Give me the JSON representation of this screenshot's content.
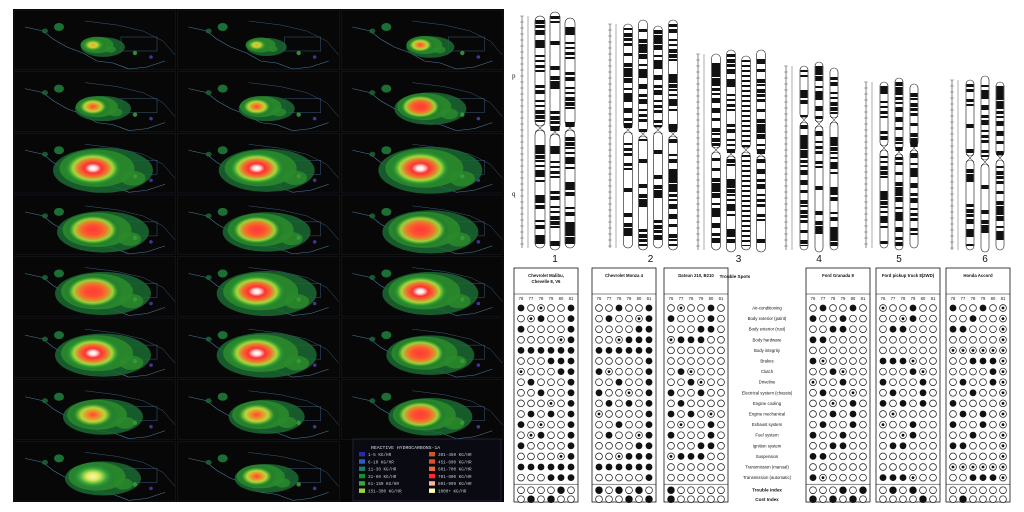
{
  "smallMultiples": {
    "legend": {
      "title": "REACTIVE HYDROCARBONS-1A",
      "items": [
        {
          "label": "1-5 KG/HR",
          "color": "#2a2aa8"
        },
        {
          "label": "6-10 KG/HR",
          "color": "#2e5fc0"
        },
        {
          "label": "11-30 KG/HR",
          "color": "#1f7a6a"
        },
        {
          "label": "31-60 KG/HR",
          "color": "#1f8a2a"
        },
        {
          "label": "61-150 KG/HR",
          "color": "#3aa83a"
        },
        {
          "label": "151-300 KG/HR",
          "color": "#9bd23a"
        },
        {
          "label": "301-450 KG/HR",
          "color": "#c85a28"
        },
        {
          "label": "451-600 KG/HR",
          "color": "#e0502a"
        },
        {
          "label": "601-700 KG/HR",
          "color": "#f06a30"
        },
        {
          "label": "701-800 KG/HR",
          "color": "#ff2a2a"
        },
        {
          "label": "801-999 KG/HR",
          "color": "#ffb0a0"
        },
        {
          "label": "1000+ KG/HR",
          "color": "#ffffb0"
        }
      ]
    }
  },
  "chromosomes": {
    "arms": {
      "p": "p",
      "q": "q"
    },
    "groups": [
      {
        "number": "1"
      },
      {
        "number": "2"
      },
      {
        "number": "3"
      },
      {
        "number": "4"
      },
      {
        "number": "5"
      },
      {
        "number": "6"
      }
    ]
  },
  "carTable": {
    "years": [
      "76",
      "77",
      "78",
      "79",
      "80",
      "81"
    ],
    "models": [
      {
        "name_lines": [
          "Chevrolet Malibu,",
          "Chevelle 8, V6"
        ]
      },
      {
        "name_lines": [
          "Chevrolet Monza 4"
        ]
      },
      {
        "name_lines": [
          "Datsun 210, B210"
        ]
      },
      {
        "name_lines": [
          "Ford Granada 8"
        ]
      },
      {
        "name_lines": [
          "Ford pickup truck 8(2WD)"
        ]
      },
      {
        "name_lines": [
          "Honda Accord"
        ]
      }
    ],
    "trouble_spots_header": "Trouble Spots",
    "trouble_spots": [
      "Air-conditioning",
      "Body exterior (paint)",
      "Body exterior (rust)",
      "Body hardware",
      "Body integrity",
      "Brakes",
      "Clutch",
      "Driveline",
      "Electrical system (chassis)",
      "Engine cooling",
      "Engine mechanical",
      "Exhaust system",
      "Fuel system",
      "Ignition system",
      "Suspension",
      "Transmission (manual)",
      "Transmission (automatic)"
    ],
    "trouble_index_label": "Trouble Index",
    "cost_index_label": "Cost Index"
  }
}
